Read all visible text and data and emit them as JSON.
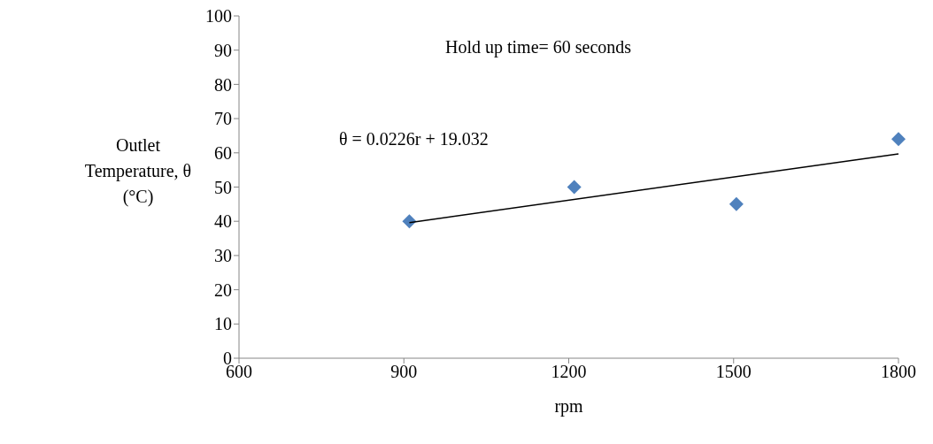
{
  "chart_data": {
    "type": "scatter",
    "xlabel": "rpm",
    "ylabel": "Outlet Temperature, θ (°C)",
    "annotations": [
      "Hold up time= 60 seconds",
      "θ = 0.0226r + 19.032"
    ],
    "xlim": [
      600,
      1800
    ],
    "xticks": [
      600,
      900,
      1200,
      1500,
      1800
    ],
    "ylim": [
      0,
      100
    ],
    "yticks": [
      0,
      10,
      20,
      30,
      40,
      50,
      60,
      70,
      80,
      90,
      100
    ],
    "grid": false,
    "legend": false,
    "series": [
      {
        "color": "#4f81bd",
        "marker": "diamond",
        "x": [
          910,
          1210,
          1505,
          1800
        ],
        "values": [
          40,
          50,
          45,
          64
        ]
      },
      {
        "type": "line",
        "marker": "none",
        "color": "#000000",
        "x": [
          910,
          1800
        ],
        "values": [
          39.6,
          59.7
        ]
      }
    ]
  }
}
